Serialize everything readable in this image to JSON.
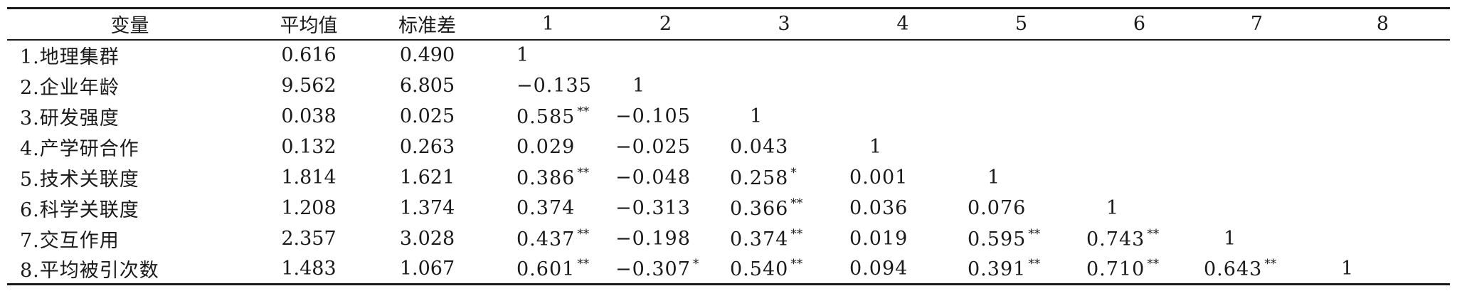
{
  "table": {
    "headers": [
      "变量",
      "平均值",
      "标准差",
      "1",
      "2",
      "3",
      "4",
      "5",
      "6",
      "7",
      "8"
    ],
    "rows": [
      {
        "name": "1.地理集群",
        "mean": "0.616",
        "sd": "0.490",
        "corr": [
          {
            "v": "1",
            "s": ""
          }
        ]
      },
      {
        "name": "2.企业年龄",
        "mean": "9.562",
        "sd": "6.805",
        "corr": [
          {
            "v": "−0.135",
            "s": ""
          },
          {
            "v": "1",
            "s": ""
          }
        ]
      },
      {
        "name": "3.研发强度",
        "mean": "0.038",
        "sd": "0.025",
        "corr": [
          {
            "v": "0.585",
            "s": "**"
          },
          {
            "v": "−0.105",
            "s": ""
          },
          {
            "v": "1",
            "s": ""
          }
        ]
      },
      {
        "name": "4.产学研合作",
        "mean": "0.132",
        "sd": "0.263",
        "corr": [
          {
            "v": "0.029",
            "s": ""
          },
          {
            "v": "−0.025",
            "s": ""
          },
          {
            "v": "0.043",
            "s": ""
          },
          {
            "v": "1",
            "s": ""
          }
        ]
      },
      {
        "name": "5.技术关联度",
        "mean": "1.814",
        "sd": "1.621",
        "corr": [
          {
            "v": "0.386",
            "s": "**"
          },
          {
            "v": "−0.048",
            "s": ""
          },
          {
            "v": "0.258",
            "s": "*"
          },
          {
            "v": "0.001",
            "s": ""
          },
          {
            "v": "1",
            "s": ""
          }
        ]
      },
      {
        "name": "6.科学关联度",
        "mean": "1.208",
        "sd": "1.374",
        "corr": [
          {
            "v": "0.374",
            "s": ""
          },
          {
            "v": "−0.313",
            "s": ""
          },
          {
            "v": "0.366",
            "s": "**"
          },
          {
            "v": "0.036",
            "s": ""
          },
          {
            "v": "0.076",
            "s": ""
          },
          {
            "v": "1",
            "s": ""
          }
        ]
      },
      {
        "name": "7.交互作用",
        "mean": "2.357",
        "sd": "3.028",
        "corr": [
          {
            "v": "0.437",
            "s": "**"
          },
          {
            "v": "−0.198",
            "s": ""
          },
          {
            "v": "0.374",
            "s": "**"
          },
          {
            "v": "0.019",
            "s": ""
          },
          {
            "v": "0.595",
            "s": "**"
          },
          {
            "v": "0.743",
            "s": "**"
          },
          {
            "v": "1",
            "s": ""
          }
        ]
      },
      {
        "name": "8.平均被引次数",
        "mean": "1.483",
        "sd": "1.067",
        "corr": [
          {
            "v": "0.601",
            "s": "**"
          },
          {
            "v": "−0.307",
            "s": "*"
          },
          {
            "v": "0.540",
            "s": "**"
          },
          {
            "v": "0.094",
            "s": ""
          },
          {
            "v": "0.391",
            "s": "**"
          },
          {
            "v": "0.710",
            "s": "**"
          },
          {
            "v": "0.643",
            "s": "**"
          },
          {
            "v": "1",
            "s": ""
          }
        ]
      }
    ]
  }
}
